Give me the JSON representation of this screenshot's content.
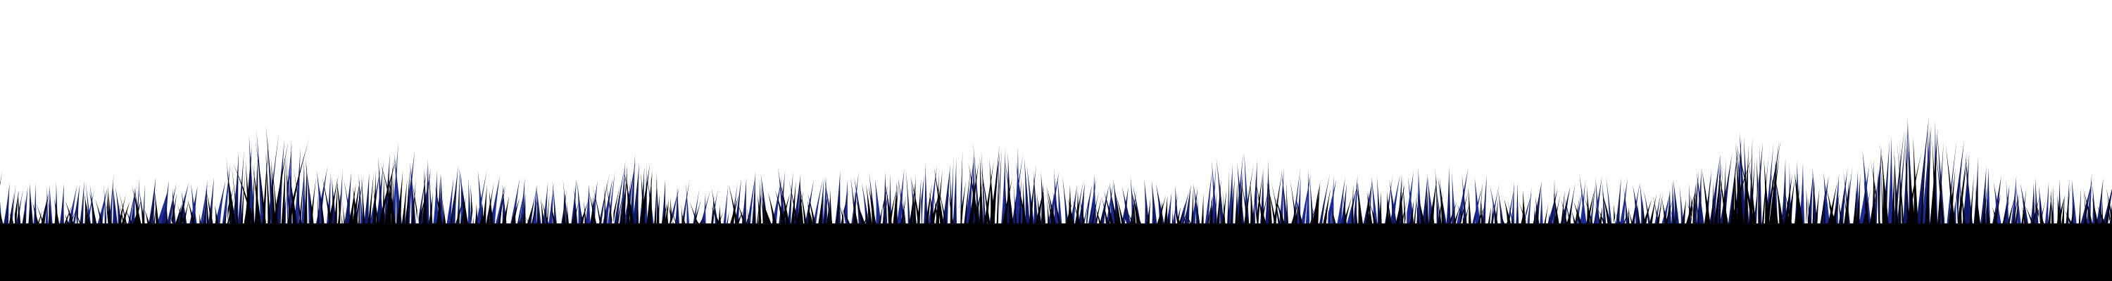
{
  "scene": {
    "subject": "grass-silhouette",
    "background_color": "#ffffff",
    "ground_color": "#000000",
    "blade_color": "#000000",
    "highlight_color": "#1a2a9c",
    "highlight_color_alt": "#0f1a6e",
    "white_glint_color": "#ffffff"
  }
}
